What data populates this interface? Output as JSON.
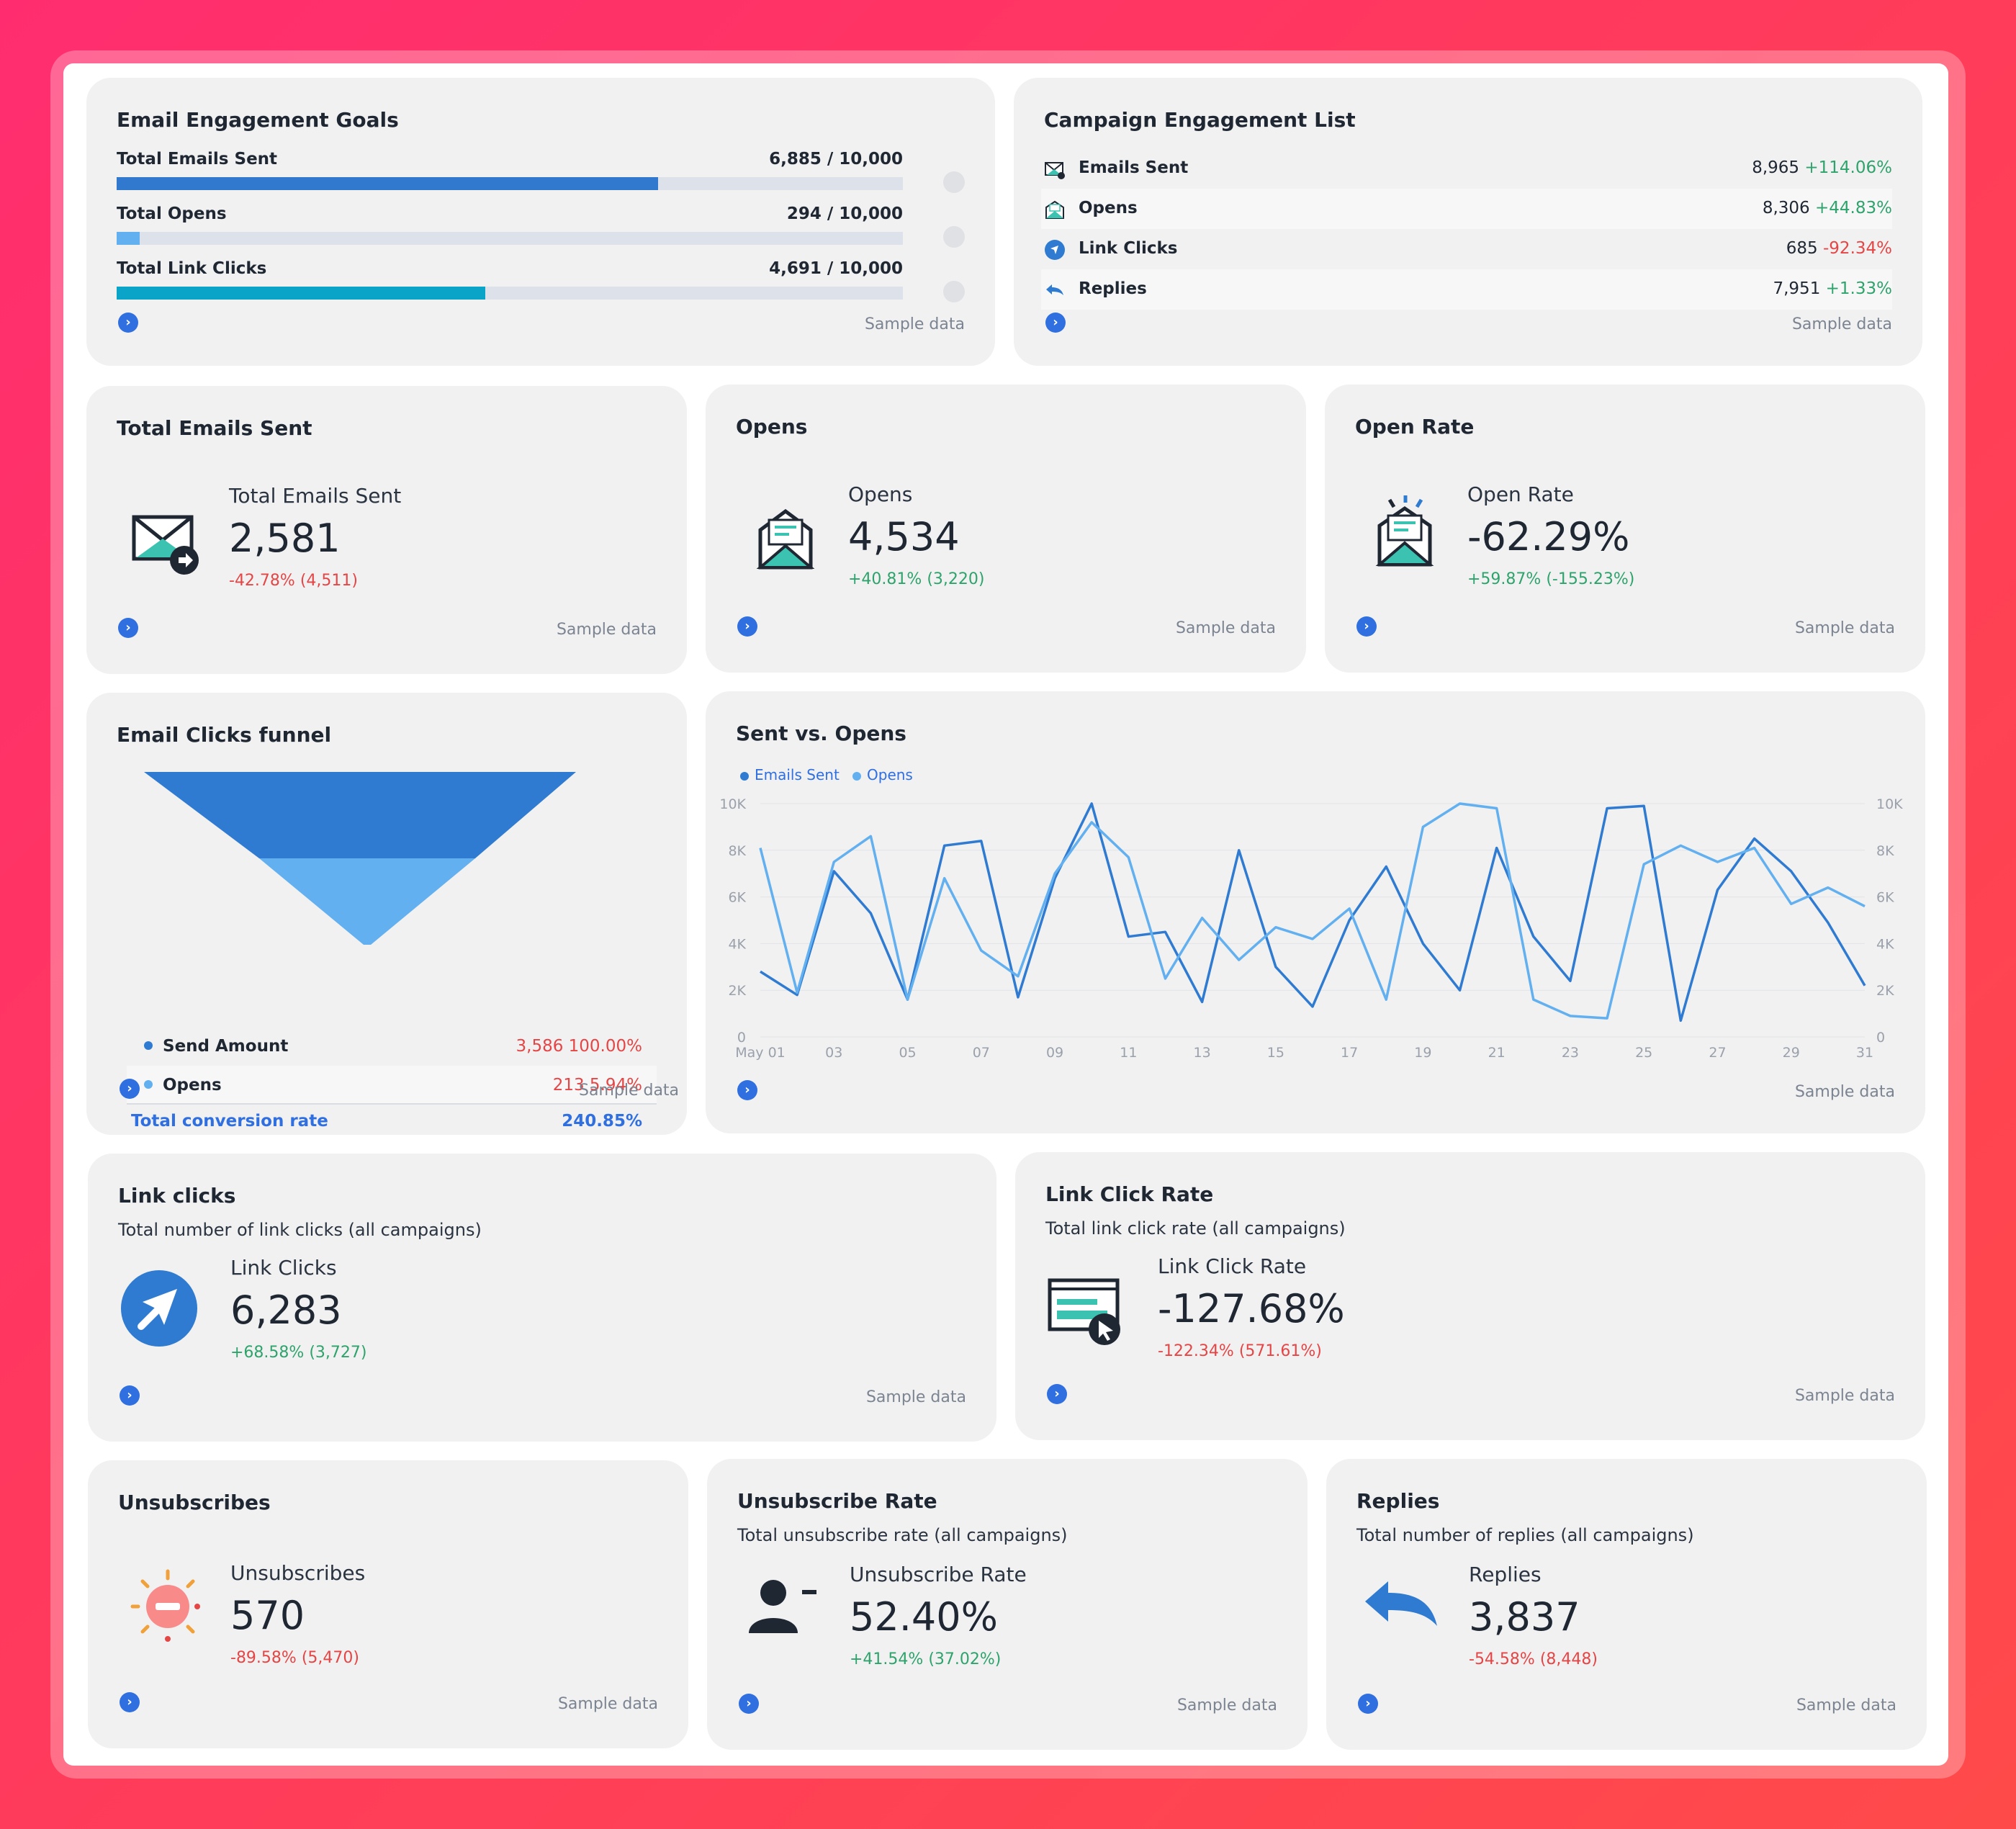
{
  "sample_label": "Sample data",
  "colors": {
    "primary": "#2f6fe0",
    "light": "#62b0ef",
    "teal": "#0aa4c8",
    "green": "#2ea36b",
    "red": "#e64545"
  },
  "goals": {
    "title": "Email Engagement Goals",
    "items": [
      {
        "label": "Total Emails Sent",
        "value": "6,885 / 10,000",
        "progress": 0.6885,
        "color": "#3178cf"
      },
      {
        "label": "Total Opens",
        "value": "294 / 10,000",
        "progress": 0.0294,
        "color": "#62b0ef"
      },
      {
        "label": "Total Link Clicks",
        "value": "4,691 / 10,000",
        "progress": 0.4691,
        "color": "#0aa4c8"
      }
    ]
  },
  "campaign_list": {
    "title": "Campaign Engagement List",
    "items": [
      {
        "label": "Emails Sent",
        "value": "8,965",
        "delta": "+114.06%",
        "trend": "up",
        "icon": "email-sent-icon"
      },
      {
        "label": "Opens",
        "value": "8,306",
        "delta": "+44.83%",
        "trend": "up",
        "icon": "open-envelope-icon"
      },
      {
        "label": "Link Clicks",
        "value": "685",
        "delta": "-92.34%",
        "trend": "down",
        "icon": "link-click-icon"
      },
      {
        "label": "Replies",
        "value": "7,951",
        "delta": "+1.33%",
        "trend": "up",
        "icon": "reply-icon"
      }
    ]
  },
  "kpi_sent": {
    "title": "Total Emails Sent",
    "label": "Total Emails Sent",
    "value": "2,581",
    "delta": "-42.78% (4,511)"
  },
  "kpi_opens": {
    "title": "Opens",
    "label": "Opens",
    "value": "4,534",
    "delta": "+40.81% (3,220)"
  },
  "kpi_open_rate": {
    "title": "Open Rate",
    "label": "Open Rate",
    "value": "-62.29%",
    "delta": "+59.87% (-155.23%)"
  },
  "funnel": {
    "title": "Email Clicks funnel",
    "rows": [
      {
        "label": "Send Amount",
        "value": "3,586 100.00%",
        "color": "#2f7bd1"
      },
      {
        "label": "Opens",
        "value": "213 5.94%",
        "color": "#62b0ef"
      }
    ],
    "total_label": "Total conversion rate",
    "total_value": "240.85%"
  },
  "sent_vs_opens": {
    "title": "Sent vs. Opens",
    "chart_data": {
      "type": "line",
      "x": [
        "May 01",
        "02",
        "03",
        "04",
        "05",
        "06",
        "07",
        "08",
        "09",
        "10",
        "11",
        "12",
        "13",
        "14",
        "15",
        "16",
        "17",
        "18",
        "19",
        "20",
        "21",
        "22",
        "23",
        "24",
        "25",
        "26",
        "27",
        "28",
        "29",
        "30",
        "31"
      ],
      "x_tick_labels": [
        "May 01",
        "03",
        "05",
        "07",
        "09",
        "11",
        "13",
        "15",
        "17",
        "19",
        "21",
        "23",
        "25",
        "27",
        "29",
        "31"
      ],
      "y_ticks": [
        "0",
        "2K",
        "4K",
        "6K",
        "8K",
        "10K"
      ],
      "ylim": [
        0,
        10000
      ],
      "legend_position": "top-left",
      "series": [
        {
          "name": "Emails Sent",
          "color": "#2f7bd1",
          "values": [
            2800,
            1800,
            7100,
            5300,
            1600,
            8200,
            8400,
            1700,
            6800,
            10000,
            4300,
            4500,
            1500,
            8000,
            3000,
            1300,
            5000,
            7300,
            4000,
            2000,
            8100,
            4300,
            2400,
            9800,
            9900,
            700,
            6300,
            8500,
            7100,
            4900,
            2200
          ]
        },
        {
          "name": "Opens",
          "color": "#62b0ef",
          "values": [
            8100,
            1900,
            7500,
            8600,
            1600,
            6800,
            3700,
            2600,
            7000,
            9200,
            7700,
            2500,
            5100,
            3300,
            4700,
            4200,
            5500,
            1600,
            9000,
            10000,
            9800,
            1600,
            900,
            800,
            7400,
            8200,
            7500,
            8100,
            5700,
            6400,
            5600
          ]
        }
      ]
    }
  },
  "link_clicks": {
    "title": "Link clicks",
    "subtitle": "Total number of link clicks (all campaigns)",
    "label": "Link Clicks",
    "value": "6,283",
    "delta": "+68.58% (3,727)"
  },
  "link_click_rate": {
    "title": "Link Click Rate",
    "subtitle": "Total link click rate (all campaigns)",
    "label": "Link Click Rate",
    "value": "-127.68%",
    "delta": "-122.34% (571.61%)"
  },
  "unsubscribes": {
    "title": "Unsubscribes",
    "label": "Unsubscribes",
    "value": "570",
    "delta": "-89.58% (5,470)"
  },
  "unsubscribe_rate": {
    "title": "Unsubscribe Rate",
    "subtitle": "Total unsubscribe rate (all campaigns)",
    "label": "Unsubscribe Rate",
    "value": "52.40%",
    "delta": "+41.54% (37.02%)"
  },
  "replies": {
    "title": "Replies",
    "subtitle": "Total number of replies (all campaigns)",
    "label": "Replies",
    "value": "3,837",
    "delta": "-54.58% (8,448)"
  }
}
